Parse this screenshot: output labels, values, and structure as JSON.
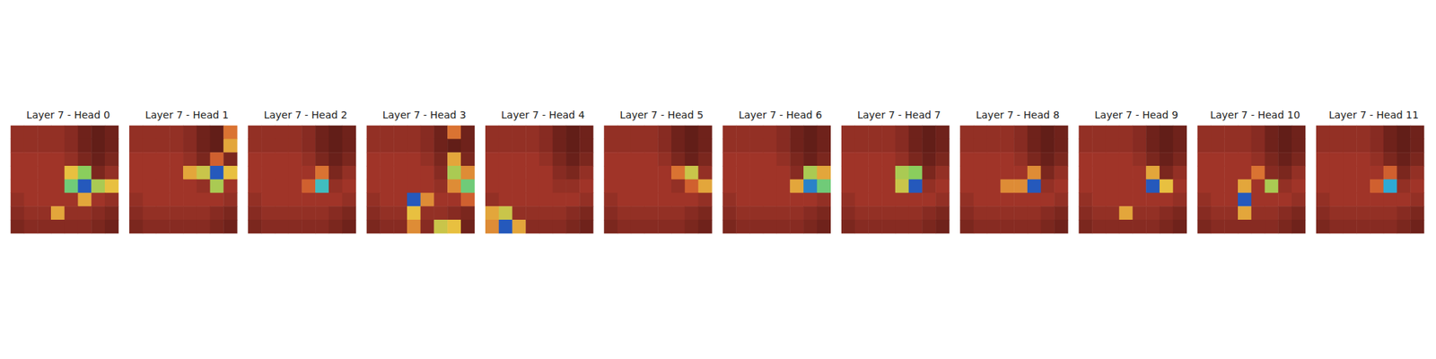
{
  "chart_data": [
    {
      "type": "heatmap",
      "title": "Layer 7 - Head 0",
      "tick_labels": false,
      "color_range": [
        0,
        100
      ],
      "cells": [
        [
          12,
          12,
          12,
          12,
          10,
          6,
          4,
          6
        ],
        [
          12,
          12,
          12,
          12,
          10,
          6,
          4,
          6
        ],
        [
          14,
          14,
          14,
          14,
          12,
          8,
          5,
          8
        ],
        [
          14,
          14,
          14,
          14,
          50,
          65,
          8,
          12
        ],
        [
          14,
          14,
          14,
          14,
          70,
          95,
          60,
          50
        ],
        [
          12,
          14,
          14,
          14,
          14,
          45,
          14,
          12
        ],
        [
          10,
          12,
          12,
          45,
          12,
          12,
          10,
          8
        ],
        [
          8,
          10,
          10,
          10,
          10,
          10,
          8,
          6
        ]
      ]
    },
    {
      "type": "heatmap",
      "title": "Layer 7 - Head 1",
      "tick_labels": false,
      "color_range": [
        0,
        100
      ],
      "cells": [
        [
          12,
          12,
          12,
          12,
          10,
          6,
          4,
          35
        ],
        [
          12,
          12,
          12,
          12,
          10,
          6,
          4,
          45
        ],
        [
          14,
          14,
          14,
          14,
          12,
          8,
          30,
          8
        ],
        [
          14,
          14,
          14,
          14,
          45,
          55,
          95,
          50
        ],
        [
          14,
          14,
          14,
          14,
          14,
          12,
          60,
          14
        ],
        [
          12,
          14,
          14,
          14,
          14,
          14,
          14,
          12
        ],
        [
          10,
          12,
          12,
          12,
          12,
          12,
          10,
          8
        ],
        [
          8,
          10,
          10,
          10,
          10,
          10,
          8,
          6
        ]
      ]
    },
    {
      "type": "heatmap",
      "title": "Layer 7 - Head 2",
      "tick_labels": false,
      "color_range": [
        0,
        100
      ],
      "cells": [
        [
          12,
          12,
          12,
          12,
          10,
          6,
          4,
          6
        ],
        [
          12,
          12,
          12,
          12,
          10,
          6,
          4,
          6
        ],
        [
          14,
          14,
          14,
          14,
          12,
          8,
          5,
          8
        ],
        [
          14,
          14,
          14,
          14,
          14,
          35,
          8,
          12
        ],
        [
          14,
          14,
          14,
          14,
          30,
          80,
          12,
          14
        ],
        [
          12,
          14,
          14,
          14,
          14,
          14,
          14,
          12
        ],
        [
          10,
          12,
          12,
          12,
          12,
          12,
          10,
          8
        ],
        [
          8,
          10,
          10,
          10,
          10,
          10,
          8,
          6
        ]
      ]
    },
    {
      "type": "heatmap",
      "title": "Layer 7 - Head 3",
      "tick_labels": false,
      "color_range": [
        0,
        100
      ],
      "cells": [
        [
          12,
          12,
          12,
          12,
          10,
          6,
          35,
          6
        ],
        [
          12,
          12,
          12,
          12,
          10,
          6,
          4,
          6
        ],
        [
          14,
          14,
          14,
          14,
          12,
          8,
          45,
          8
        ],
        [
          14,
          14,
          14,
          14,
          14,
          10,
          60,
          40
        ],
        [
          14,
          14,
          14,
          14,
          14,
          12,
          40,
          70
        ],
        [
          12,
          14,
          14,
          95,
          40,
          14,
          14,
          30
        ],
        [
          10,
          12,
          12,
          50,
          12,
          12,
          10,
          8
        ],
        [
          8,
          10,
          10,
          40,
          10,
          55,
          50,
          6
        ]
      ]
    },
    {
      "type": "heatmap",
      "title": "Layer 7 - Head 4",
      "tick_labels": false,
      "color_range": [
        0,
        100
      ],
      "cells": [
        [
          12,
          12,
          12,
          12,
          10,
          6,
          4,
          6
        ],
        [
          12,
          12,
          12,
          12,
          10,
          6,
          4,
          6
        ],
        [
          14,
          14,
          14,
          14,
          12,
          8,
          5,
          8
        ],
        [
          14,
          14,
          14,
          14,
          14,
          10,
          8,
          12
        ],
        [
          14,
          14,
          14,
          14,
          14,
          12,
          12,
          14
        ],
        [
          12,
          14,
          14,
          14,
          14,
          14,
          14,
          12
        ],
        [
          45,
          55,
          12,
          12,
          12,
          12,
          10,
          8
        ],
        [
          40,
          95,
          45,
          10,
          10,
          10,
          8,
          6
        ]
      ]
    },
    {
      "type": "heatmap",
      "title": "Layer 7 - Head 5",
      "tick_labels": false,
      "color_range": [
        0,
        100
      ],
      "cells": [
        [
          12,
          12,
          12,
          12,
          10,
          6,
          4,
          6
        ],
        [
          12,
          12,
          12,
          12,
          10,
          6,
          4,
          6
        ],
        [
          14,
          14,
          14,
          14,
          12,
          8,
          5,
          8
        ],
        [
          14,
          14,
          14,
          14,
          14,
          35,
          55,
          12
        ],
        [
          14,
          14,
          14,
          14,
          14,
          12,
          30,
          45
        ],
        [
          12,
          14,
          14,
          14,
          14,
          14,
          14,
          12
        ],
        [
          10,
          12,
          12,
          12,
          12,
          12,
          10,
          8
        ],
        [
          8,
          10,
          10,
          10,
          10,
          10,
          8,
          6
        ]
      ]
    },
    {
      "type": "heatmap",
      "title": "Layer 7 - Head 6",
      "tick_labels": false,
      "color_range": [
        0,
        100
      ],
      "cells": [
        [
          12,
          12,
          12,
          12,
          10,
          6,
          4,
          6
        ],
        [
          12,
          12,
          12,
          12,
          10,
          6,
          4,
          6
        ],
        [
          14,
          14,
          14,
          14,
          12,
          8,
          5,
          8
        ],
        [
          14,
          14,
          14,
          14,
          14,
          10,
          60,
          45
        ],
        [
          14,
          14,
          14,
          14,
          14,
          45,
          90,
          70
        ],
        [
          12,
          14,
          14,
          14,
          14,
          14,
          14,
          12
        ],
        [
          10,
          12,
          12,
          12,
          12,
          12,
          10,
          8
        ],
        [
          8,
          10,
          10,
          10,
          10,
          10,
          8,
          6
        ]
      ]
    },
    {
      "type": "heatmap",
      "title": "Layer 7 - Head 7",
      "tick_labels": false,
      "color_range": [
        0,
        100
      ],
      "cells": [
        [
          12,
          12,
          12,
          12,
          10,
          6,
          4,
          6
        ],
        [
          12,
          12,
          12,
          12,
          10,
          6,
          4,
          6
        ],
        [
          14,
          14,
          14,
          14,
          12,
          8,
          5,
          8
        ],
        [
          14,
          14,
          14,
          14,
          60,
          65,
          8,
          12
        ],
        [
          14,
          14,
          14,
          14,
          55,
          95,
          12,
          14
        ],
        [
          12,
          14,
          14,
          14,
          14,
          14,
          14,
          12
        ],
        [
          10,
          12,
          12,
          12,
          12,
          12,
          10,
          8
        ],
        [
          8,
          10,
          10,
          10,
          10,
          10,
          8,
          6
        ]
      ]
    },
    {
      "type": "heatmap",
      "title": "Layer 7 - Head 8",
      "tick_labels": false,
      "color_range": [
        0,
        100
      ],
      "cells": [
        [
          12,
          12,
          12,
          12,
          10,
          6,
          4,
          6
        ],
        [
          12,
          12,
          12,
          12,
          10,
          6,
          4,
          6
        ],
        [
          14,
          14,
          14,
          14,
          12,
          8,
          5,
          8
        ],
        [
          14,
          14,
          14,
          14,
          14,
          40,
          8,
          12
        ],
        [
          14,
          14,
          14,
          40,
          40,
          95,
          12,
          14
        ],
        [
          12,
          14,
          14,
          14,
          14,
          14,
          14,
          12
        ],
        [
          10,
          12,
          12,
          12,
          12,
          12,
          10,
          8
        ],
        [
          8,
          10,
          10,
          10,
          10,
          10,
          8,
          6
        ]
      ]
    },
    {
      "type": "heatmap",
      "title": "Layer 7 - Head 9",
      "tick_labels": false,
      "color_range": [
        0,
        100
      ],
      "cells": [
        [
          12,
          12,
          12,
          12,
          10,
          6,
          4,
          6
        ],
        [
          12,
          12,
          12,
          12,
          10,
          6,
          4,
          6
        ],
        [
          14,
          14,
          14,
          14,
          12,
          8,
          5,
          8
        ],
        [
          14,
          14,
          14,
          14,
          14,
          45,
          8,
          12
        ],
        [
          14,
          14,
          14,
          14,
          14,
          95,
          50,
          14
        ],
        [
          12,
          14,
          14,
          14,
          14,
          14,
          14,
          12
        ],
        [
          10,
          12,
          12,
          45,
          12,
          12,
          10,
          8
        ],
        [
          8,
          10,
          10,
          10,
          10,
          10,
          8,
          6
        ]
      ]
    },
    {
      "type": "heatmap",
      "title": "Layer 7 - Head 10",
      "tick_labels": false,
      "color_range": [
        0,
        100
      ],
      "cells": [
        [
          12,
          12,
          12,
          12,
          10,
          6,
          4,
          6
        ],
        [
          12,
          12,
          12,
          12,
          10,
          6,
          4,
          6
        ],
        [
          14,
          14,
          14,
          14,
          12,
          8,
          5,
          8
        ],
        [
          14,
          14,
          14,
          14,
          35,
          10,
          8,
          12
        ],
        [
          14,
          14,
          14,
          45,
          14,
          60,
          12,
          14
        ],
        [
          12,
          14,
          14,
          95,
          14,
          14,
          14,
          12
        ],
        [
          10,
          12,
          12,
          45,
          12,
          12,
          10,
          8
        ],
        [
          8,
          10,
          10,
          10,
          10,
          10,
          8,
          6
        ]
      ]
    },
    {
      "type": "heatmap",
      "title": "Layer 7 - Head 11",
      "tick_labels": false,
      "color_range": [
        0,
        100
      ],
      "cells": [
        [
          12,
          12,
          12,
          12,
          10,
          6,
          4,
          6
        ],
        [
          12,
          12,
          12,
          12,
          10,
          6,
          4,
          6
        ],
        [
          14,
          14,
          14,
          14,
          12,
          8,
          5,
          8
        ],
        [
          14,
          14,
          14,
          14,
          14,
          30,
          8,
          12
        ],
        [
          14,
          14,
          14,
          14,
          30,
          85,
          12,
          14
        ],
        [
          12,
          14,
          14,
          14,
          14,
          14,
          14,
          12
        ],
        [
          10,
          12,
          12,
          12,
          12,
          12,
          10,
          8
        ],
        [
          8,
          10,
          10,
          10,
          10,
          10,
          8,
          6
        ]
      ]
    }
  ]
}
